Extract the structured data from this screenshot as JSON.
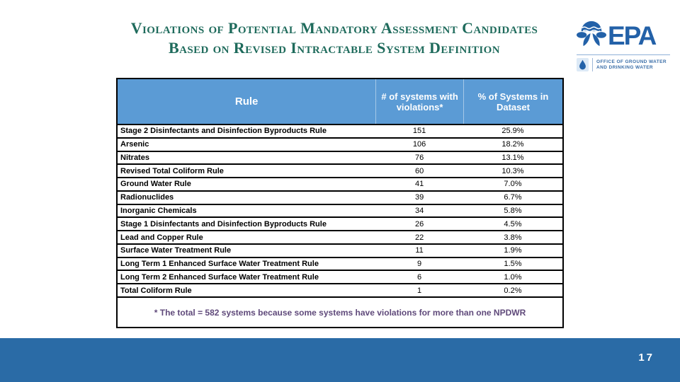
{
  "slide": {
    "title_line1": "Violations of Potential Mandatory Assessment Candidates",
    "title_line2": "Based on Revised Intractable System Definition",
    "page_number": "17"
  },
  "logo": {
    "acronym": "EPA",
    "org_line1": "OFFICE OF GROUND WATER",
    "org_line2": "AND DRINKING WATER"
  },
  "table": {
    "headers": {
      "rule": "Rule",
      "count": "# of systems with violations*",
      "pct": "% of Systems in Dataset"
    },
    "rows": [
      {
        "rule": "Stage 2 Disinfectants and Disinfection Byproducts Rule",
        "count": "151",
        "pct": "25.9%"
      },
      {
        "rule": "Arsenic",
        "count": "106",
        "pct": "18.2%"
      },
      {
        "rule": "Nitrates",
        "count": "76",
        "pct": "13.1%"
      },
      {
        "rule": "Revised Total Coliform Rule",
        "count": "60",
        "pct": "10.3%"
      },
      {
        "rule": "Ground Water Rule",
        "count": "41",
        "pct": "7.0%"
      },
      {
        "rule": "Radionuclides",
        "count": "39",
        "pct": "6.7%"
      },
      {
        "rule": "Inorganic Chemicals",
        "count": "34",
        "pct": "5.8%"
      },
      {
        "rule": "Stage 1 Disinfectants and Disinfection Byproducts Rule",
        "count": "26",
        "pct": "4.5%"
      },
      {
        "rule": "Lead and Copper Rule",
        "count": "22",
        "pct": "3.8%"
      },
      {
        "rule": "Surface Water Treatment Rule",
        "count": "11",
        "pct": "1.9%"
      },
      {
        "rule": "Long Term 1 Enhanced Surface Water Treatment Rule",
        "count": "9",
        "pct": "1.5%"
      },
      {
        "rule": "Long Term 2 Enhanced Surface Water Treatment Rule",
        "count": "6",
        "pct": "1.0%"
      },
      {
        "rule": "Total Coliform Rule",
        "count": "1",
        "pct": "0.2%"
      }
    ],
    "footnote": "* The total = 582 systems because some systems have violations for more than one NPDWR"
  },
  "colors": {
    "title_teal": "#1f6b5c",
    "header_blue": "#5b9bd5",
    "footer_bar_blue": "#2a6ba6",
    "footnote_purple": "#5f497a",
    "epa_blue": "#2361a8",
    "row_border_black": "#000000"
  },
  "chart_data": {
    "type": "table",
    "title": "Violations of Potential Mandatory Assessment Candidates Based on Revised Intractable System Definition",
    "columns": [
      "Rule",
      "# of systems with violations*",
      "% of Systems in Dataset"
    ],
    "categories": [
      "Stage 2 Disinfectants and Disinfection Byproducts Rule",
      "Arsenic",
      "Nitrates",
      "Revised Total Coliform Rule",
      "Ground Water Rule",
      "Radionuclides",
      "Inorganic Chemicals",
      "Stage 1 Disinfectants and Disinfection Byproducts Rule",
      "Lead and Copper Rule",
      "Surface Water Treatment Rule",
      "Long Term 1 Enhanced Surface Water Treatment Rule",
      "Long Term 2 Enhanced Surface Water Treatment Rule",
      "Total Coliform Rule"
    ],
    "series": [
      {
        "name": "# of systems with violations",
        "values": [
          151,
          106,
          76,
          60,
          41,
          39,
          34,
          26,
          22,
          11,
          9,
          6,
          1
        ]
      },
      {
        "name": "% of Systems in Dataset",
        "values": [
          25.9,
          18.2,
          13.1,
          10.3,
          7.0,
          6.7,
          5.8,
          4.5,
          3.8,
          1.9,
          1.5,
          1.0,
          0.2
        ]
      }
    ],
    "footnote": "* The total = 582 systems because some systems have violations for more than one NPDWR"
  }
}
